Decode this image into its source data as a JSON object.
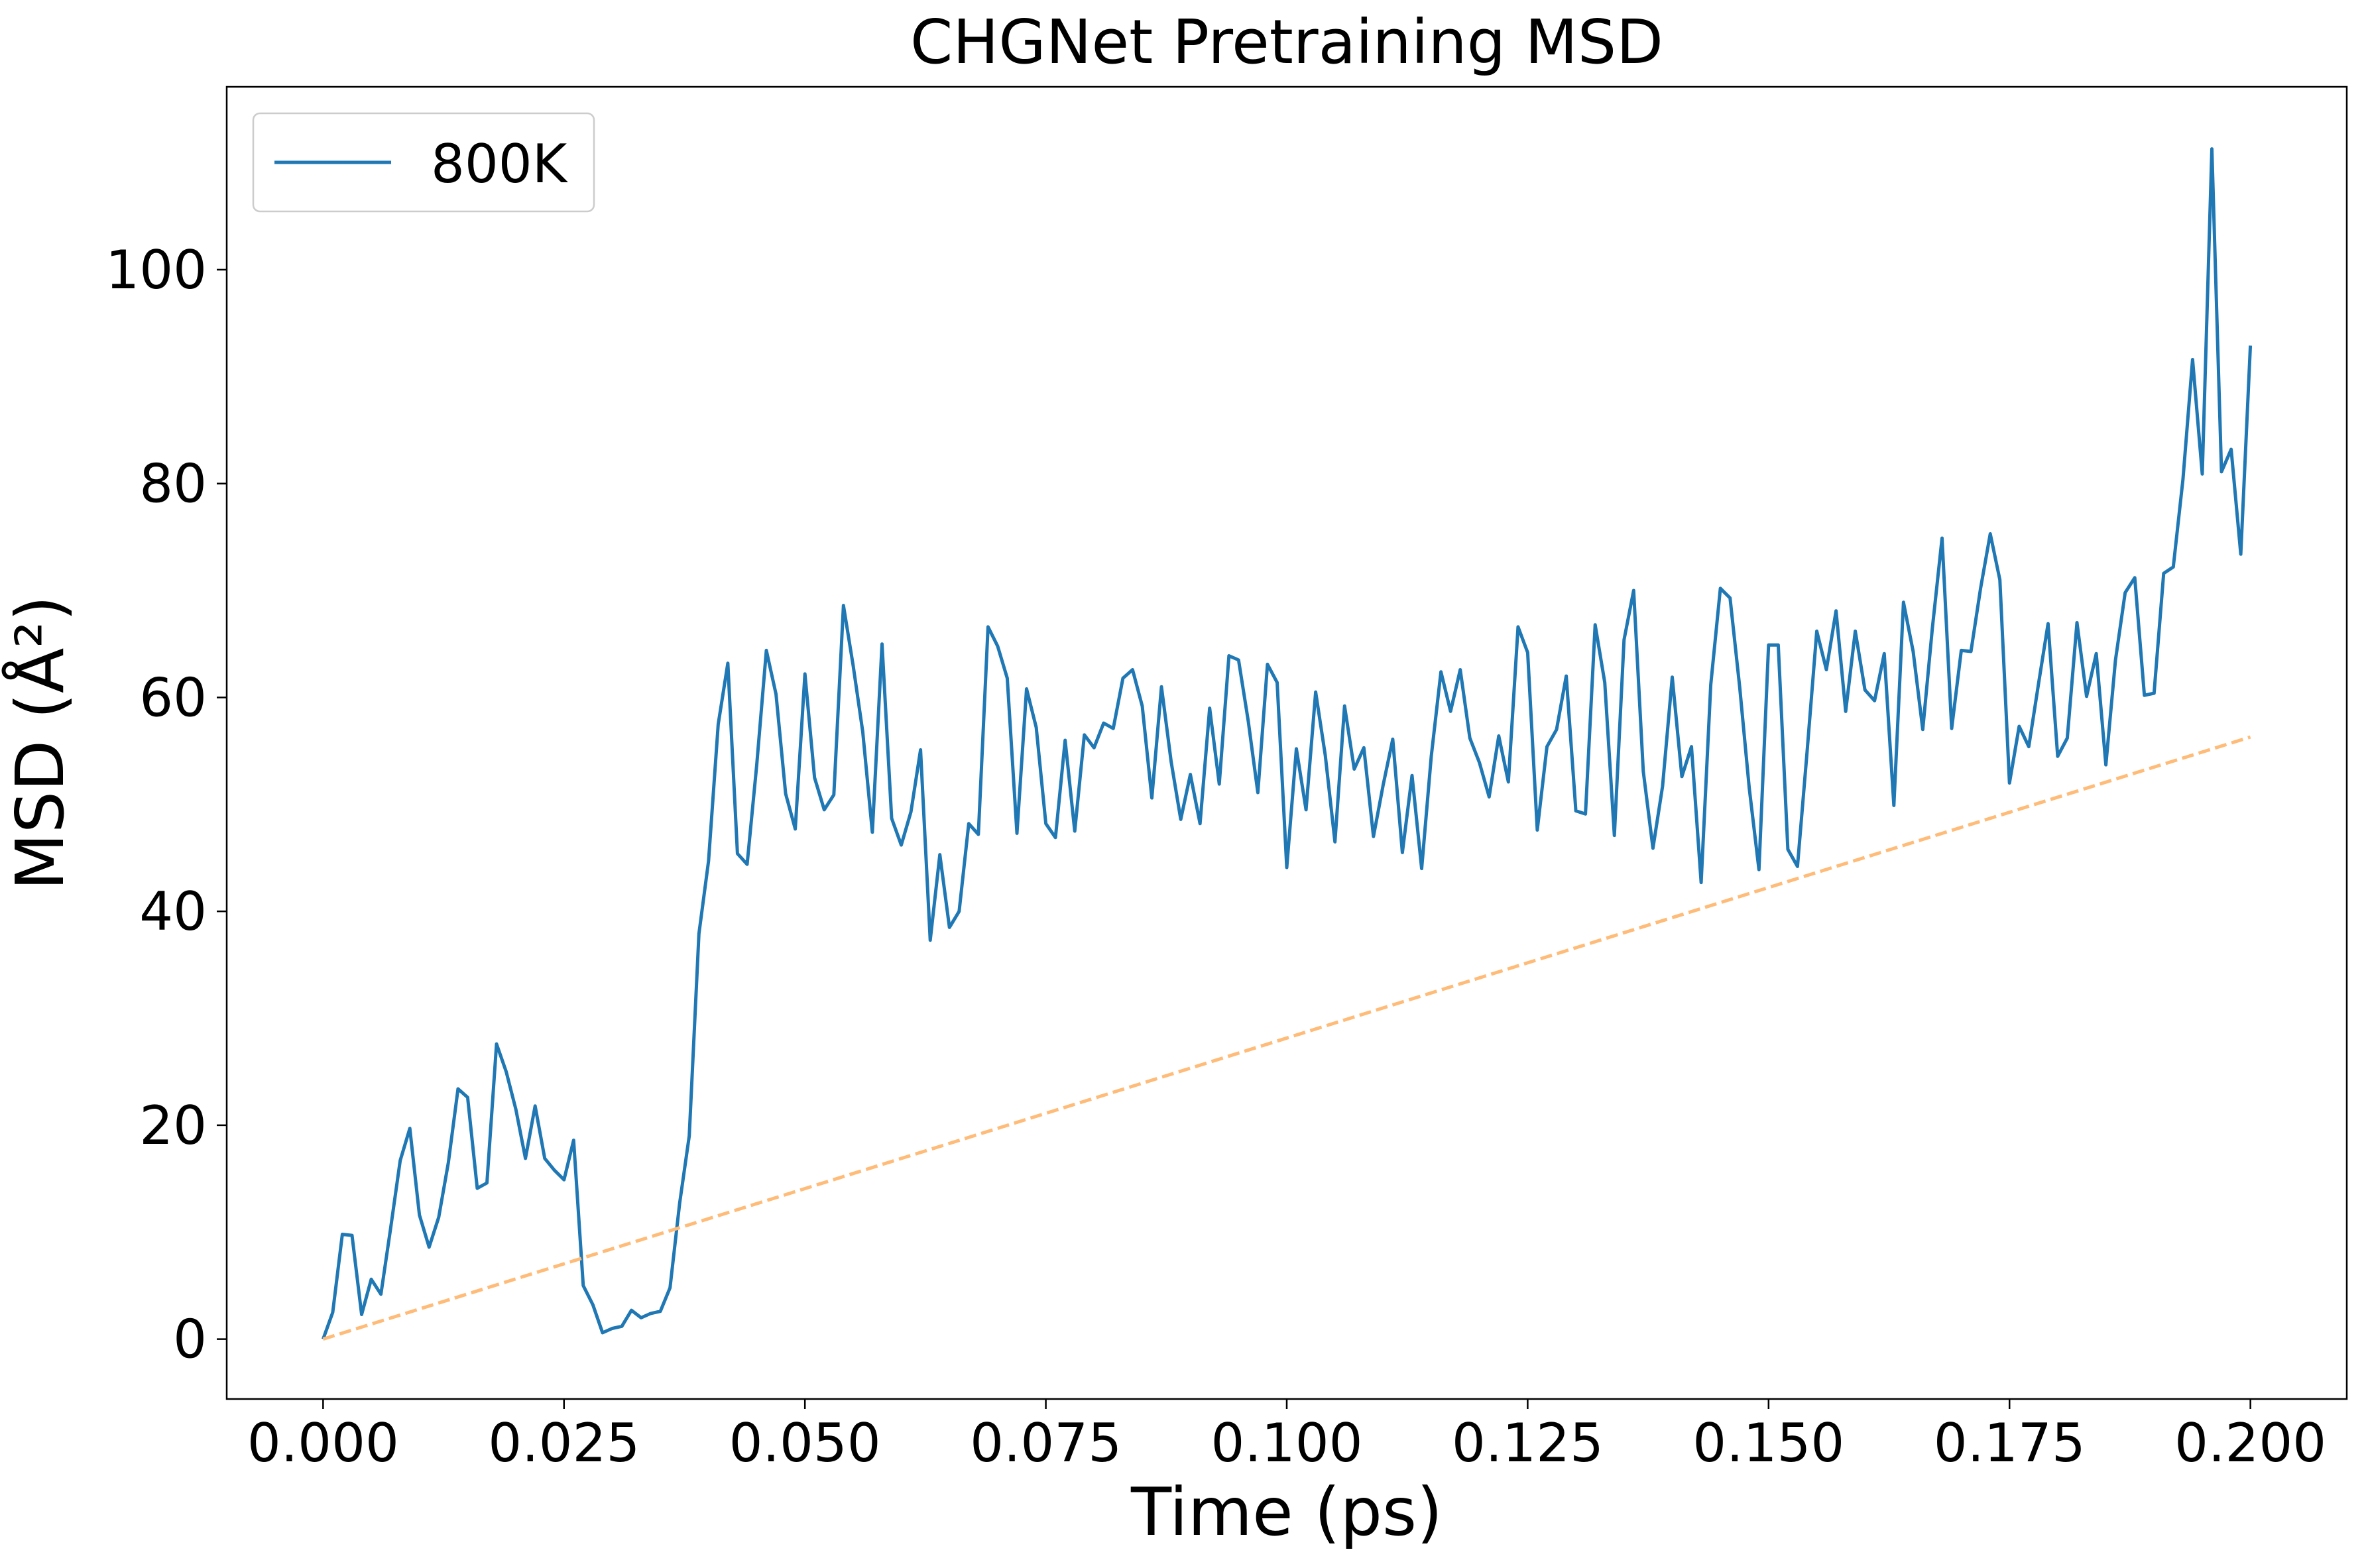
{
  "chart_data": {
    "type": "line",
    "title": "CHGNet Pretraining MSD",
    "xlabel": "Time (ps)",
    "ylabel": "MSD (Å²)",
    "xlim": [
      -0.01,
      0.21
    ],
    "ylim": [
      -5.6,
      117.1
    ],
    "x_ticks": [
      0.0,
      0.025,
      0.05,
      0.075,
      0.1,
      0.125,
      0.15,
      0.175,
      0.2
    ],
    "x_tick_labels": [
      "0.000",
      "0.025",
      "0.050",
      "0.075",
      "0.100",
      "0.125",
      "0.150",
      "0.175",
      "0.200"
    ],
    "y_ticks": [
      0,
      20,
      40,
      60,
      80,
      100
    ],
    "y_tick_labels": [
      "0",
      "20",
      "40",
      "60",
      "80",
      "100"
    ],
    "grid": false,
    "legend": {
      "position": "upper-left",
      "entries": [
        "800K"
      ]
    },
    "series": [
      {
        "name": "800K",
        "color": "#1f77b4",
        "style": "solid",
        "x": [
          0.0,
          0.001,
          0.002,
          0.003,
          0.004,
          0.005,
          0.006,
          0.007,
          0.008,
          0.009,
          0.01,
          0.011,
          0.012,
          0.013,
          0.014,
          0.015,
          0.016,
          0.017,
          0.018,
          0.019,
          0.02,
          0.021,
          0.022,
          0.023,
          0.024,
          0.025,
          0.026,
          0.027,
          0.028,
          0.029,
          0.03,
          0.031,
          0.032,
          0.033,
          0.034,
          0.035,
          0.036,
          0.037,
          0.038,
          0.039,
          0.04,
          0.041,
          0.042,
          0.043,
          0.044,
          0.045,
          0.046,
          0.047,
          0.048,
          0.049,
          0.05,
          0.051,
          0.052,
          0.053,
          0.054,
          0.055,
          0.056,
          0.057,
          0.058,
          0.059,
          0.06,
          0.061,
          0.062,
          0.063,
          0.064,
          0.065,
          0.066,
          0.067,
          0.068,
          0.069,
          0.07,
          0.071,
          0.072,
          0.073,
          0.074,
          0.075,
          0.076,
          0.077,
          0.078,
          0.079,
          0.08,
          0.081,
          0.082,
          0.083,
          0.084,
          0.085,
          0.086,
          0.087,
          0.088,
          0.089,
          0.09,
          0.091,
          0.092,
          0.093,
          0.094,
          0.095,
          0.096,
          0.097,
          0.098,
          0.099,
          0.1,
          0.101,
          0.102,
          0.103,
          0.104,
          0.105,
          0.106,
          0.107,
          0.108,
          0.109,
          0.11,
          0.111,
          0.112,
          0.113,
          0.114,
          0.115,
          0.116,
          0.117,
          0.118,
          0.119,
          0.12,
          0.121,
          0.122,
          0.123,
          0.124,
          0.125,
          0.126,
          0.127,
          0.128,
          0.129,
          0.13,
          0.131,
          0.132,
          0.133,
          0.134,
          0.135,
          0.136,
          0.137,
          0.138,
          0.139,
          0.14,
          0.141,
          0.142,
          0.143,
          0.144,
          0.145,
          0.146,
          0.147,
          0.148,
          0.149,
          0.15,
          0.151,
          0.152,
          0.153,
          0.154,
          0.155,
          0.156,
          0.157,
          0.158,
          0.159,
          0.16,
          0.161,
          0.162,
          0.163,
          0.164,
          0.165,
          0.166,
          0.167,
          0.168,
          0.169,
          0.17,
          0.171,
          0.172,
          0.173,
          0.174,
          0.175,
          0.176,
          0.177,
          0.178,
          0.179,
          0.18,
          0.181,
          0.182,
          0.183,
          0.184,
          0.185,
          0.186,
          0.187,
          0.188,
          0.189,
          0.19,
          0.191,
          0.192,
          0.193,
          0.194,
          0.195,
          0.196,
          0.197,
          0.198,
          0.199,
          0.2
        ],
        "y": [
          0.0,
          2.5,
          9.8,
          9.7,
          2.3,
          5.6,
          4.2,
          10.3,
          16.7,
          19.7,
          11.6,
          8.6,
          11.4,
          16.5,
          23.4,
          22.6,
          14.1,
          14.6,
          27.6,
          25.0,
          21.5,
          16.9,
          21.8,
          16.9,
          15.8,
          14.9,
          18.6,
          5.0,
          3.2,
          0.6,
          1.0,
          1.2,
          2.7,
          2.0,
          2.4,
          2.6,
          4.8,
          12.7,
          19.0,
          37.9,
          44.7,
          57.5,
          63.2,
          45.4,
          44.4,
          53.7,
          64.4,
          60.3,
          51.0,
          47.7,
          62.2,
          52.5,
          49.5,
          50.9,
          68.6,
          63.0,
          56.8,
          47.4,
          65.0,
          48.7,
          46.2,
          49.3,
          55.1,
          37.3,
          45.3,
          38.5,
          40.0,
          48.2,
          47.2,
          66.6,
          64.8,
          61.8,
          47.3,
          60.8,
          57.2,
          48.2,
          46.9,
          56.0,
          47.5,
          56.5,
          55.3,
          57.6,
          57.1,
          61.8,
          62.6,
          59.2,
          50.6,
          61.0,
          54.0,
          48.6,
          52.8,
          48.2,
          59.0,
          51.9,
          63.9,
          63.5,
          57.8,
          51.1,
          63.1,
          61.4,
          44.1,
          55.2,
          49.5,
          60.5,
          54.6,
          46.5,
          59.2,
          53.3,
          55.3,
          47.0,
          51.8,
          56.1,
          45.5,
          52.7,
          44.0,
          54.5,
          62.4,
          58.7,
          62.6,
          56.2,
          53.9,
          50.7,
          56.4,
          52.1,
          66.6,
          64.2,
          47.6,
          55.4,
          57.0,
          62.0,
          49.4,
          49.1,
          66.8,
          61.4,
          47.1,
          65.4,
          70.0,
          53.1,
          45.9,
          51.7,
          61.9,
          52.6,
          55.4,
          42.7,
          61.2,
          70.2,
          69.3,
          61.0,
          51.5,
          43.9,
          64.9,
          64.9,
          45.8,
          44.2,
          55.0,
          66.2,
          62.6,
          68.1,
          58.7,
          66.2,
          60.7,
          59.7,
          64.1,
          49.9,
          68.9,
          64.3,
          57.0,
          66.5,
          74.9,
          57.1,
          64.4,
          64.3,
          70.2,
          75.3,
          71.0,
          52.0,
          57.3,
          55.4,
          61.2,
          66.9,
          54.5,
          56.2,
          67.0,
          60.1,
          64.1,
          53.7,
          63.5,
          69.8,
          71.2,
          60.2,
          60.4,
          71.6,
          72.2,
          80.4,
          91.6,
          80.9,
          111.3,
          81.1,
          83.2,
          73.4,
          92.9
        ]
      },
      {
        "color": "#ffbb78",
        "style": "dashed",
        "x": [
          0.0,
          0.2
        ],
        "y": [
          0.0,
          56.3
        ]
      }
    ]
  }
}
